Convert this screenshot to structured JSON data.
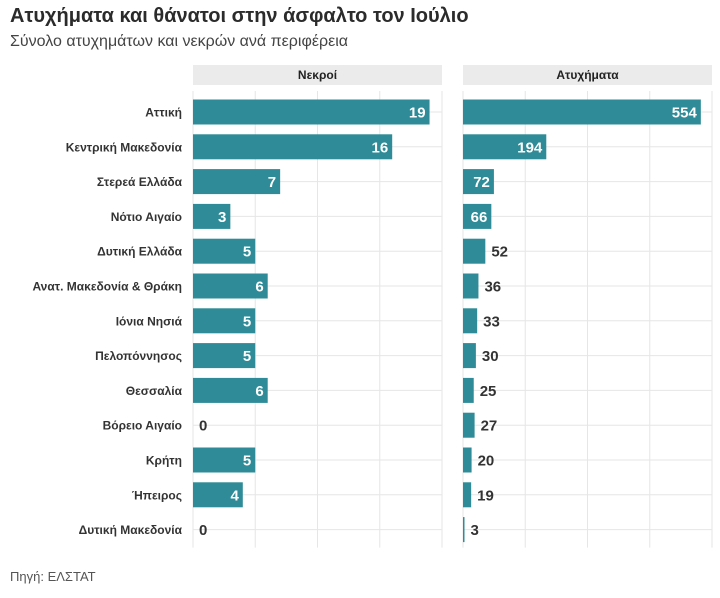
{
  "title": "Ατυχήματα και θάνατοι στην άσφαλτο τον Ιούλιο",
  "subtitle": "Σύνολο ατυχημάτων και νεκρών ανά περιφέρεια",
  "source": "Πηγή: ΕΛΣΤΑΤ",
  "colors": {
    "bar": "#2e8b97",
    "panel_header_bg": "#ebebeb",
    "grid": "#e6e6e6"
  },
  "chart_data": {
    "type": "bar",
    "orientation": "horizontal",
    "title": "Ατυχήματα και θάνατοι στην άσφαλτο τον Ιούλιο",
    "subtitle": "Σύνολο ατυχημάτων και νεκρών ανά περιφέρεια",
    "categories": [
      "Αττική",
      "Κεντρική Μακεδονία",
      "Στερεά Ελλάδα",
      "Νότιο Αιγαίο",
      "Δυτική Ελλάδα",
      "Ανατ. Μακεδονία & Θράκη",
      "Ιόνια Νησιά",
      "Πελοπόννησος",
      "Θεσσαλία",
      "Βόρειο Αιγαίο",
      "Κρήτη",
      "Ήπειρος",
      "Δυτική Μακεδονία"
    ],
    "series": [
      {
        "name": "Νεκροί",
        "values": [
          19,
          16,
          7,
          3,
          5,
          6,
          5,
          5,
          6,
          0,
          5,
          4,
          0
        ],
        "xlim": [
          0,
          20
        ]
      },
      {
        "name": "Ατυχήματα",
        "values": [
          554,
          194,
          72,
          66,
          52,
          36,
          33,
          30,
          25,
          27,
          20,
          19,
          3
        ],
        "xlim": [
          0,
          580
        ]
      }
    ],
    "xlabel": "",
    "ylabel": "",
    "grid": true,
    "legend": "none"
  }
}
